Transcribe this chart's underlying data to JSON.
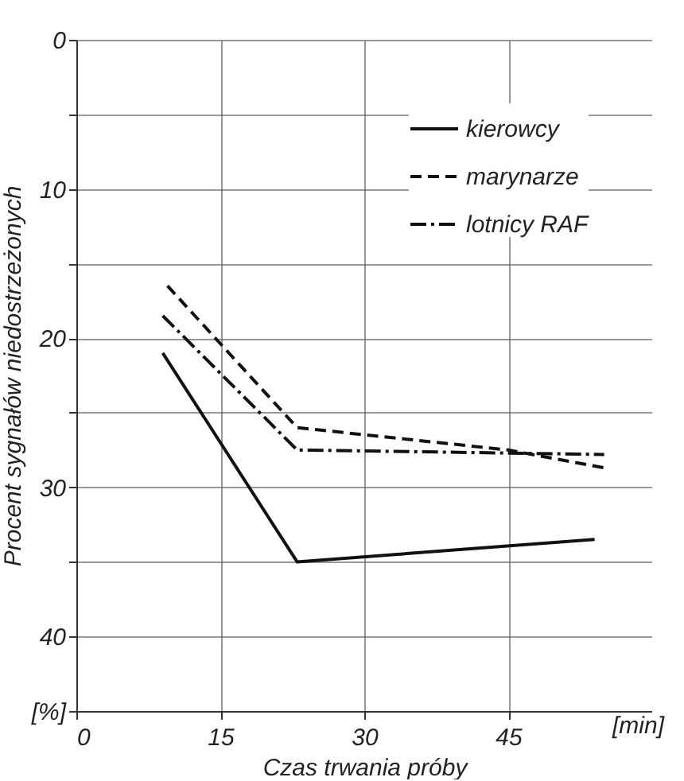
{
  "chart_data": {
    "type": "line",
    "xlabel": "Czas trwania próby",
    "ylabel": "Procent sygnałów niedostrzeżonych",
    "annotations": [
      "[min]"
    ],
    "series": [
      {
        "name": "kierowcy",
        "color": "#111111",
        "line_style": "solid",
        "x": [
          9,
          23,
          54
        ],
        "values": [
          21,
          35,
          33.5
        ]
      },
      {
        "name": "marynarze",
        "color": "#111111",
        "line_style": "dashed",
        "x": [
          9.5,
          23,
          45,
          55
        ],
        "values": [
          16.5,
          26,
          27.5,
          28.7
        ]
      },
      {
        "name": "lotnicy RAF",
        "color": "#111111",
        "line_style": "dashdot",
        "x": [
          9,
          23,
          55
        ],
        "values": [
          18.5,
          27.5,
          27.8
        ]
      }
    ],
    "xlim": [
      0,
      60
    ],
    "xticks": [
      0,
      15,
      30,
      45
    ],
    "ylim": [
      45,
      0
    ],
    "yticks": [
      0,
      {
        "value": 5,
        "label": null
      },
      10,
      {
        "value": 15,
        "label": null
      },
      20,
      {
        "value": 25,
        "label": null
      },
      30,
      {
        "value": 35,
        "label": null
      },
      40,
      {
        "value": 45,
        "label": "[%]"
      }
    ],
    "grid": true,
    "legend": "top right",
    "marker": "none"
  }
}
